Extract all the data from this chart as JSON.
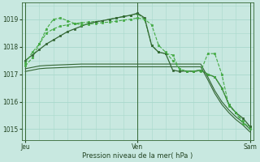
{
  "bg_color": "#c8e8e0",
  "grid_color": "#a8d8cc",
  "xlabel": "Pression niveau de la mer( hPa )",
  "ylim": [
    1014.6,
    1019.6
  ],
  "yticks": [
    1015,
    1016,
    1017,
    1018,
    1019
  ],
  "xtick_labels": [
    "Jeu",
    "Ven",
    "Sam"
  ],
  "xtick_positions": [
    0,
    16,
    32
  ],
  "series": [
    {
      "x": [
        0,
        1,
        2,
        3,
        4,
        5,
        6,
        7,
        8,
        9,
        10,
        11,
        12,
        13,
        14,
        15,
        16,
        17,
        18,
        19,
        20,
        21,
        22,
        23,
        24,
        25,
        26,
        27,
        28,
        29,
        30,
        31,
        32
      ],
      "y": [
        1017.1,
        1017.15,
        1017.2,
        1017.22,
        1017.23,
        1017.24,
        1017.25,
        1017.26,
        1017.27,
        1017.27,
        1017.27,
        1017.27,
        1017.27,
        1017.27,
        1017.27,
        1017.27,
        1017.27,
        1017.27,
        1017.27,
        1017.27,
        1017.27,
        1017.27,
        1017.27,
        1017.27,
        1017.27,
        1017.27,
        1016.8,
        1016.3,
        1015.9,
        1015.6,
        1015.35,
        1015.15,
        1014.9
      ],
      "style": "-",
      "color": "#336633",
      "lw": 0.8,
      "marker": null
    },
    {
      "x": [
        0,
        1,
        2,
        3,
        4,
        5,
        6,
        7,
        8,
        9,
        10,
        11,
        12,
        13,
        14,
        15,
        16,
        17,
        18,
        19,
        20,
        21,
        22,
        23,
        24,
        25,
        26,
        27,
        28,
        29,
        30,
        31,
        32
      ],
      "y": [
        1017.2,
        1017.25,
        1017.3,
        1017.32,
        1017.33,
        1017.34,
        1017.35,
        1017.36,
        1017.37,
        1017.37,
        1017.37,
        1017.37,
        1017.37,
        1017.37,
        1017.37,
        1017.37,
        1017.37,
        1017.37,
        1017.37,
        1017.37,
        1017.37,
        1017.37,
        1017.37,
        1017.37,
        1017.37,
        1017.37,
        1016.9,
        1016.4,
        1016.0,
        1015.7,
        1015.45,
        1015.25,
        1015.0
      ],
      "style": "-",
      "color": "#336633",
      "lw": 0.8,
      "marker": null
    },
    {
      "x": [
        0,
        1,
        2,
        3,
        4,
        5,
        6,
        7,
        8,
        9,
        10,
        11,
        12,
        13,
        14,
        15,
        16,
        17,
        18,
        19,
        20,
        21,
        22,
        23,
        24,
        25,
        26,
        27,
        28,
        29,
        30,
        31,
        32
      ],
      "y": [
        1017.3,
        1017.6,
        1018.1,
        1018.5,
        1018.65,
        1018.75,
        1018.8,
        1018.85,
        1018.87,
        1018.9,
        1018.92,
        1018.95,
        1019.0,
        1019.05,
        1019.1,
        1019.15,
        1019.2,
        1019.0,
        1018.05,
        1017.8,
        1017.75,
        1017.7,
        1017.15,
        1017.1,
        1017.12,
        1017.1,
        1017.75,
        1017.75,
        1017.0,
        1015.85,
        1015.6,
        1015.2,
        1015.1
      ],
      "style": "--",
      "color": "#44aa44",
      "lw": 0.8,
      "marker": "s",
      "ms": 2.0
    },
    {
      "x": [
        0,
        1,
        2,
        3,
        4,
        5,
        6,
        7,
        8,
        9,
        10,
        11,
        12,
        13,
        14,
        15,
        16,
        17,
        18,
        19,
        20,
        21,
        22,
        23,
        24,
        25,
        26,
        27,
        28,
        29,
        30,
        31,
        32
      ],
      "y": [
        1017.5,
        1017.7,
        1017.9,
        1018.1,
        1018.25,
        1018.4,
        1018.55,
        1018.65,
        1018.75,
        1018.85,
        1018.9,
        1018.95,
        1019.0,
        1019.05,
        1019.1,
        1019.15,
        1019.22,
        1019.05,
        1018.05,
        1017.8,
        1017.75,
        1017.15,
        1017.1,
        1017.12,
        1017.1,
        1017.15,
        1017.0,
        1016.9,
        1016.5,
        1015.9,
        1015.6,
        1015.4,
        1015.1
      ],
      "style": "-",
      "color": "#336633",
      "lw": 0.9,
      "marker": "s",
      "ms": 2.0
    },
    {
      "x": [
        0,
        1,
        2,
        3,
        4,
        5,
        6,
        7,
        8,
        9,
        10,
        11,
        12,
        13,
        14,
        15,
        16,
        17,
        18,
        19,
        20,
        21,
        22,
        23,
        24,
        25,
        26,
        27,
        28,
        29,
        30,
        31,
        32
      ],
      "y": [
        1017.4,
        1017.8,
        1018.1,
        1018.65,
        1019.0,
        1019.05,
        1018.95,
        1018.85,
        1018.8,
        1018.82,
        1018.85,
        1018.88,
        1018.9,
        1018.93,
        1018.97,
        1019.0,
        1019.05,
        1019.0,
        1018.8,
        1018.05,
        1017.8,
        1017.5,
        1017.2,
        1017.1,
        1017.12,
        1017.15,
        1017.0,
        1016.9,
        1016.5,
        1015.9,
        1015.6,
        1015.3,
        1015.0
      ],
      "style": "--",
      "color": "#44aa44",
      "lw": 0.8,
      "marker": "s",
      "ms": 2.0
    }
  ],
  "vlines": [
    0,
    16,
    32
  ]
}
